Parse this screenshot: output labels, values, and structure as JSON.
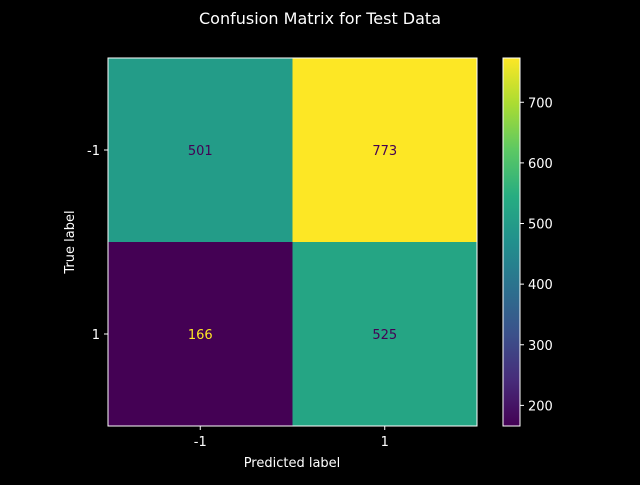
{
  "chart_data": {
    "type": "heatmap",
    "title": "Confusion Matrix for Test Data",
    "xlabel": "Predicted label",
    "ylabel": "True label",
    "x_categories": [
      "-1",
      "1"
    ],
    "y_categories": [
      "-1",
      "1"
    ],
    "values": [
      [
        501,
        773
      ],
      [
        166,
        525
      ]
    ],
    "colormap": "viridis",
    "colorbar": {
      "range": [
        166,
        773
      ],
      "ticks": [
        200,
        300,
        400,
        500,
        600,
        700
      ]
    }
  },
  "colors": {
    "background": "#000000",
    "foreground": "#ffffff"
  }
}
